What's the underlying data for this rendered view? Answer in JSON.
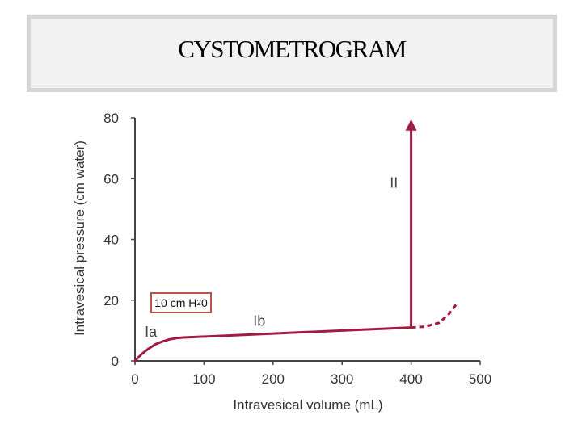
{
  "header": {
    "title": "CYSTOMETROGRAM"
  },
  "chart_data": {
    "type": "line",
    "title": "",
    "xlabel": "Intravesical volume (mL)",
    "ylabel": "Intravesical pressure (cm water)",
    "xlim": [
      0,
      500
    ],
    "ylim": [
      0,
      80
    ],
    "x_ticks": [
      "0",
      "100",
      "200",
      "300",
      "400",
      "500"
    ],
    "y_ticks": [
      "0",
      "20",
      "40",
      "60",
      "80"
    ],
    "grid": false,
    "series_color": "#a01c40",
    "series": [
      {
        "name": "",
        "x": [
          0,
          5,
          10,
          20,
          30,
          40,
          50,
          60,
          70,
          100,
          200,
          300,
          400
        ],
        "y": [
          0,
          1.2,
          2.3,
          4.1,
          5.5,
          6.4,
          7.1,
          7.5,
          7.7,
          8.0,
          9.0,
          10.0,
          11.0
        ]
      }
    ],
    "dashed_series": {
      "x": [
        400,
        420,
        440,
        455,
        465
      ],
      "y": [
        11.0,
        11.3,
        12.5,
        15.5,
        18.5
      ]
    },
    "arrow": {
      "x": 400,
      "y_from": 11.0,
      "y_to": 79
    },
    "annotations": [
      {
        "label": "Ia",
        "x": 23,
        "y": 8
      },
      {
        "label": "Ib",
        "x": 180,
        "y": 11.5
      },
      {
        "label": "II",
        "x": 375,
        "y": 57
      }
    ],
    "boxed_annotation": {
      "text": "10 cm H",
      "sub": "2",
      "tail": "0"
    }
  }
}
